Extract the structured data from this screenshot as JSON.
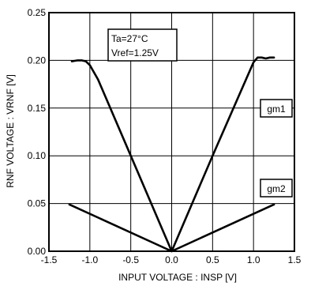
{
  "chart_data": {
    "type": "line",
    "xlabel": "INPUT VOLTAGE : INSP [V]",
    "ylabel": "RNF VOLTAGE : VRNF [V]",
    "xlim": [
      -1.5,
      1.5
    ],
    "ylim": [
      0.0,
      0.25
    ],
    "xticks": [
      "-1.5",
      "-1.0",
      "-0.5",
      "0.0",
      "0.5",
      "1.0",
      "1.5"
    ],
    "yticks": [
      "0.00",
      "0.05",
      "0.10",
      "0.15",
      "0.20",
      "0.25"
    ],
    "grid": true,
    "annotations": [
      "Ta=27°C",
      "Vref=1.25V"
    ],
    "series": [
      {
        "name": "gm1",
        "x": [
          -1.22,
          -1.15,
          -1.1,
          -1.05,
          -1.0,
          -0.9,
          -0.5,
          0.0,
          0.5,
          1.0,
          1.05,
          1.1,
          1.15,
          1.2,
          1.25
        ],
        "y": [
          0.199,
          0.2,
          0.2,
          0.199,
          0.195,
          0.18,
          0.1,
          0.0,
          0.1,
          0.198,
          0.203,
          0.203,
          0.202,
          0.203,
          0.203
        ]
      },
      {
        "name": "gm2",
        "x": [
          -1.25,
          0.0,
          1.25
        ],
        "y": [
          0.049,
          0.0,
          0.049
        ]
      }
    ]
  }
}
